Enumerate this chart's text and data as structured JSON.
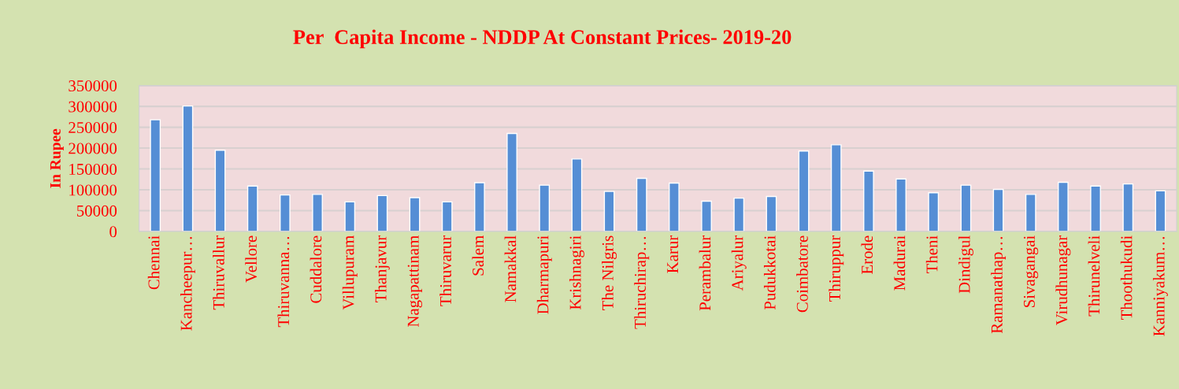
{
  "chart_data": {
    "type": "bar",
    "title": "Per  Capita Income - NDDP At Constant Prices- 2019-20",
    "ylabel": "In Rupee",
    "categories": [
      "Chennai",
      "Kancheepur…",
      "Thiruvallur",
      "Vellore",
      "Thiruvanna…",
      "Cuddalore",
      "Villupuram",
      "Thanjavur",
      "Nagapattinam",
      "Thiruvarur",
      "Salem",
      "Namakkal",
      "Dharmapuri",
      "Krishnagiri",
      "The Nilgris",
      "Thiruchirap…",
      "Karur",
      "Perambalur",
      "Ariyalur",
      "Pudukkotai",
      "Coimbatore",
      "Thiruppur",
      "Erode",
      "Madurai",
      "Theni",
      "Dindigul",
      "Ramanathap…",
      "Sivagangai",
      "Virudhunagar",
      "Thirunelveli",
      "Thoothukudi",
      "Kanniyakum…"
    ],
    "values": [
      268000,
      301000,
      195000,
      109000,
      87500,
      89000,
      71000,
      86000,
      81000,
      71000,
      117000,
      235000,
      111000,
      174000,
      96000,
      127500,
      116000,
      72500,
      80000,
      84000,
      193000,
      208000,
      145000,
      126000,
      93000,
      111000,
      101000,
      89000,
      118000,
      109000,
      114000,
      97500
    ],
    "color": "#558ed5",
    "ylim": [
      0,
      350000
    ],
    "yticks": [
      0,
      50000,
      100000,
      150000,
      200000,
      250000,
      300000,
      350000
    ],
    "grid": "y"
  }
}
